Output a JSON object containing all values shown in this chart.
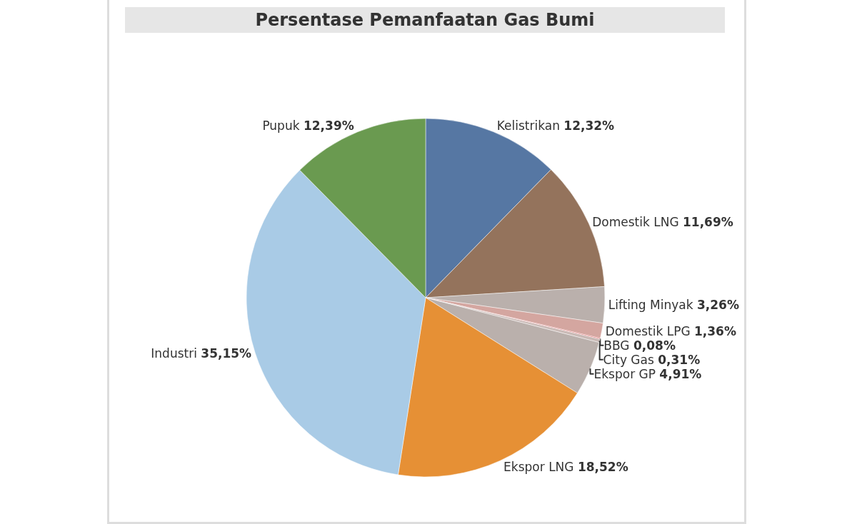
{
  "chart_data": {
    "type": "pie",
    "title": "Persentase Pemanfaatan Gas Bumi",
    "categories": [
      "Kelistrikan",
      "Domestik LNG",
      "Lifting Minyak",
      "Domestik LPG",
      "BBG",
      "City Gas",
      "Ekspor GP",
      "Ekspor LNG",
      "Industri",
      "Pupuk"
    ],
    "values": [
      12.32,
      11.69,
      3.26,
      1.36,
      0.08,
      0.31,
      4.91,
      18.52,
      35.15,
      12.39
    ],
    "value_labels": [
      "12,32%",
      "11,69%",
      "3,26%",
      "1,36%",
      "0,08%",
      "0,31%",
      "4,91%",
      "18,52%",
      "35,15%",
      "12,39%"
    ],
    "colors": [
      "#5677a3",
      "#94735c",
      "#bab0ac",
      "#d4a6a0",
      "#e15759",
      "#c9b9b5",
      "#bab0ac",
      "#e69035",
      "#a9cbe6",
      "#6a9a50"
    ],
    "legend": false
  }
}
